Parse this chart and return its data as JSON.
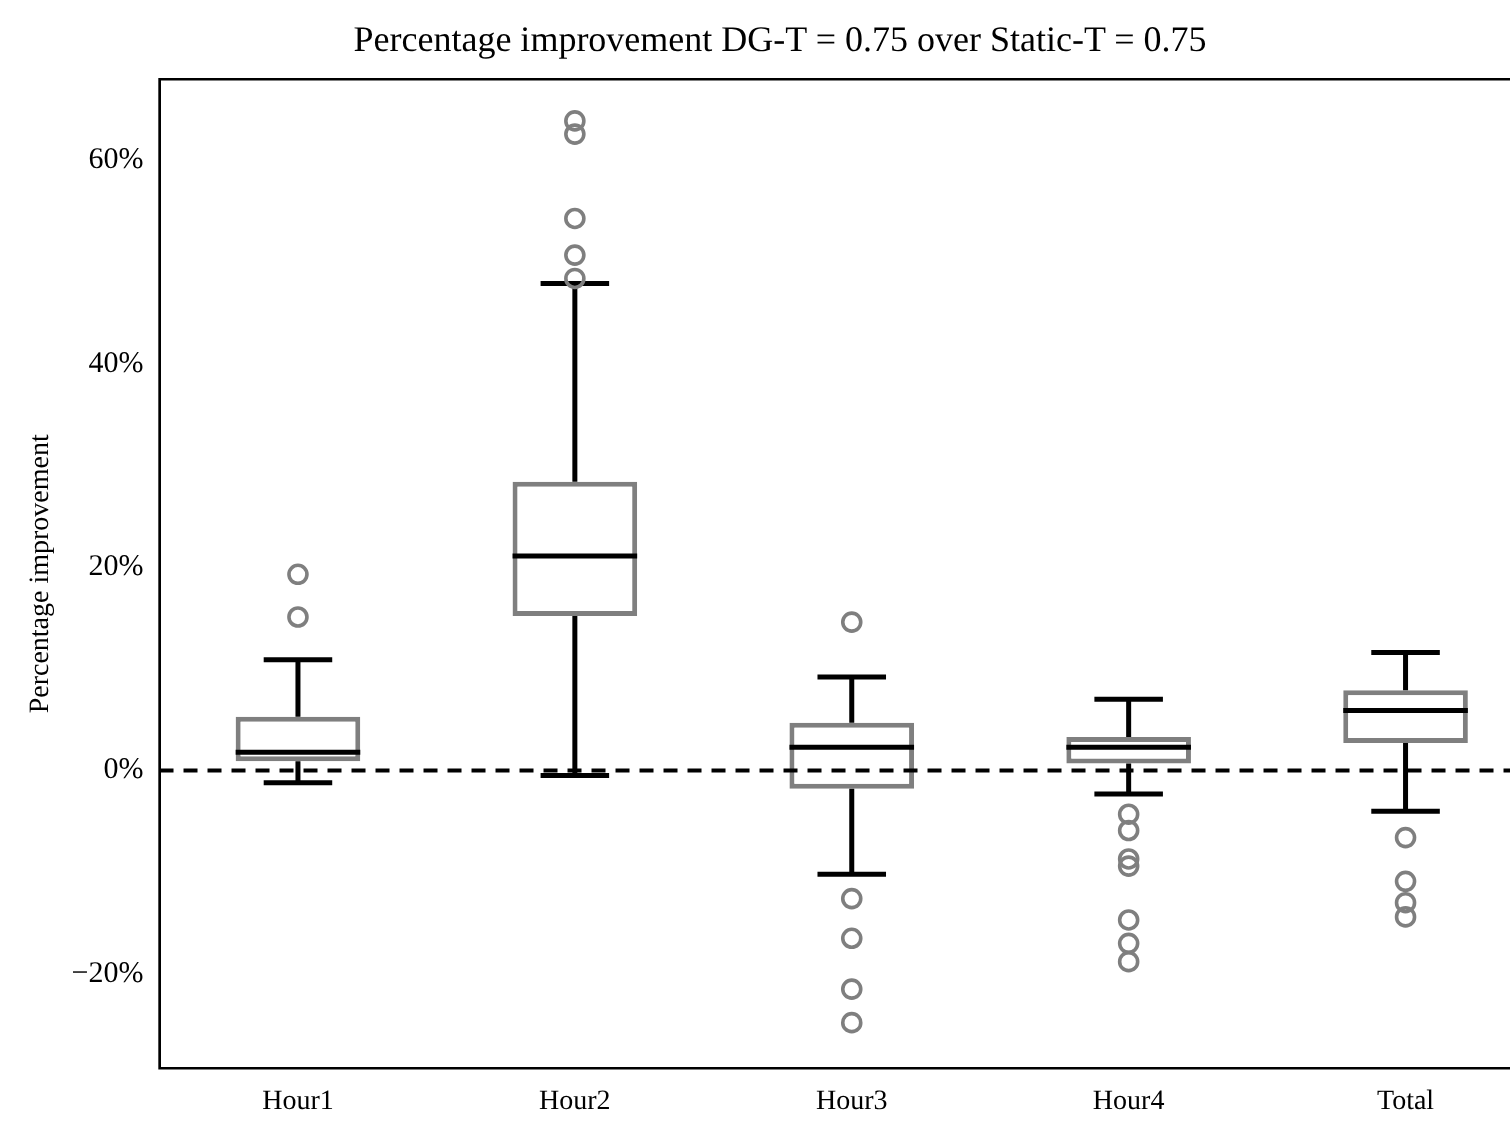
{
  "chart_data": {
    "type": "box",
    "title": "Percentage improvement DG-T = 0.75 over Static-T = 0.75",
    "ylabel": "Percentage improvement",
    "categories": [
      "Hour1",
      "Hour2",
      "Hour3",
      "Hour4",
      "Total"
    ],
    "series": [
      {
        "color": "#7f7f7f",
        "boxes": [
          {
            "low": -1.2,
            "q1": 0.9,
            "median": 1.8,
            "q3": 5.3,
            "high": 10.9,
            "outliers": [
              19.3,
              15.1
            ]
          },
          {
            "low": -0.5,
            "q1": 15.2,
            "median": 21.1,
            "q3": 28.4,
            "high": 47.9,
            "outliers": [
              63.9,
              62.6,
              54.3,
              50.7,
              48.4
            ]
          },
          {
            "low": -10.2,
            "q1": -1.8,
            "median": 2.3,
            "q3": 4.7,
            "high": 9.2,
            "outliers": [
              14.6,
              -12.6,
              -16.5,
              -21.5,
              -24.8
            ]
          },
          {
            "low": -2.3,
            "q1": 0.7,
            "median": 2.3,
            "q3": 3.3,
            "high": 7.0,
            "outliers": [
              -4.3,
              -5.9,
              -8.7,
              -9.4,
              -14.7,
              -17.0,
              -18.8
            ]
          },
          {
            "low": -4.0,
            "q1": 2.7,
            "median": 5.9,
            "q3": 7.9,
            "high": 11.6,
            "outliers": [
              -6.6,
              -10.9,
              -13.0,
              -14.4
            ]
          }
        ]
      }
    ],
    "ylim": [
      -29.3,
      68
    ],
    "yticks": [
      {
        "value": -20,
        "label": "−20%"
      },
      {
        "value": 0,
        "label": "0%"
      },
      {
        "value": 20,
        "label": "20%"
      },
      {
        "value": 40,
        "label": "40%"
      },
      {
        "value": 60,
        "label": "60%"
      }
    ],
    "ref_lines": [
      {
        "axis": "y",
        "value": 0,
        "color": "#000000",
        "line_style": "dashed"
      }
    ],
    "grid": false
  }
}
